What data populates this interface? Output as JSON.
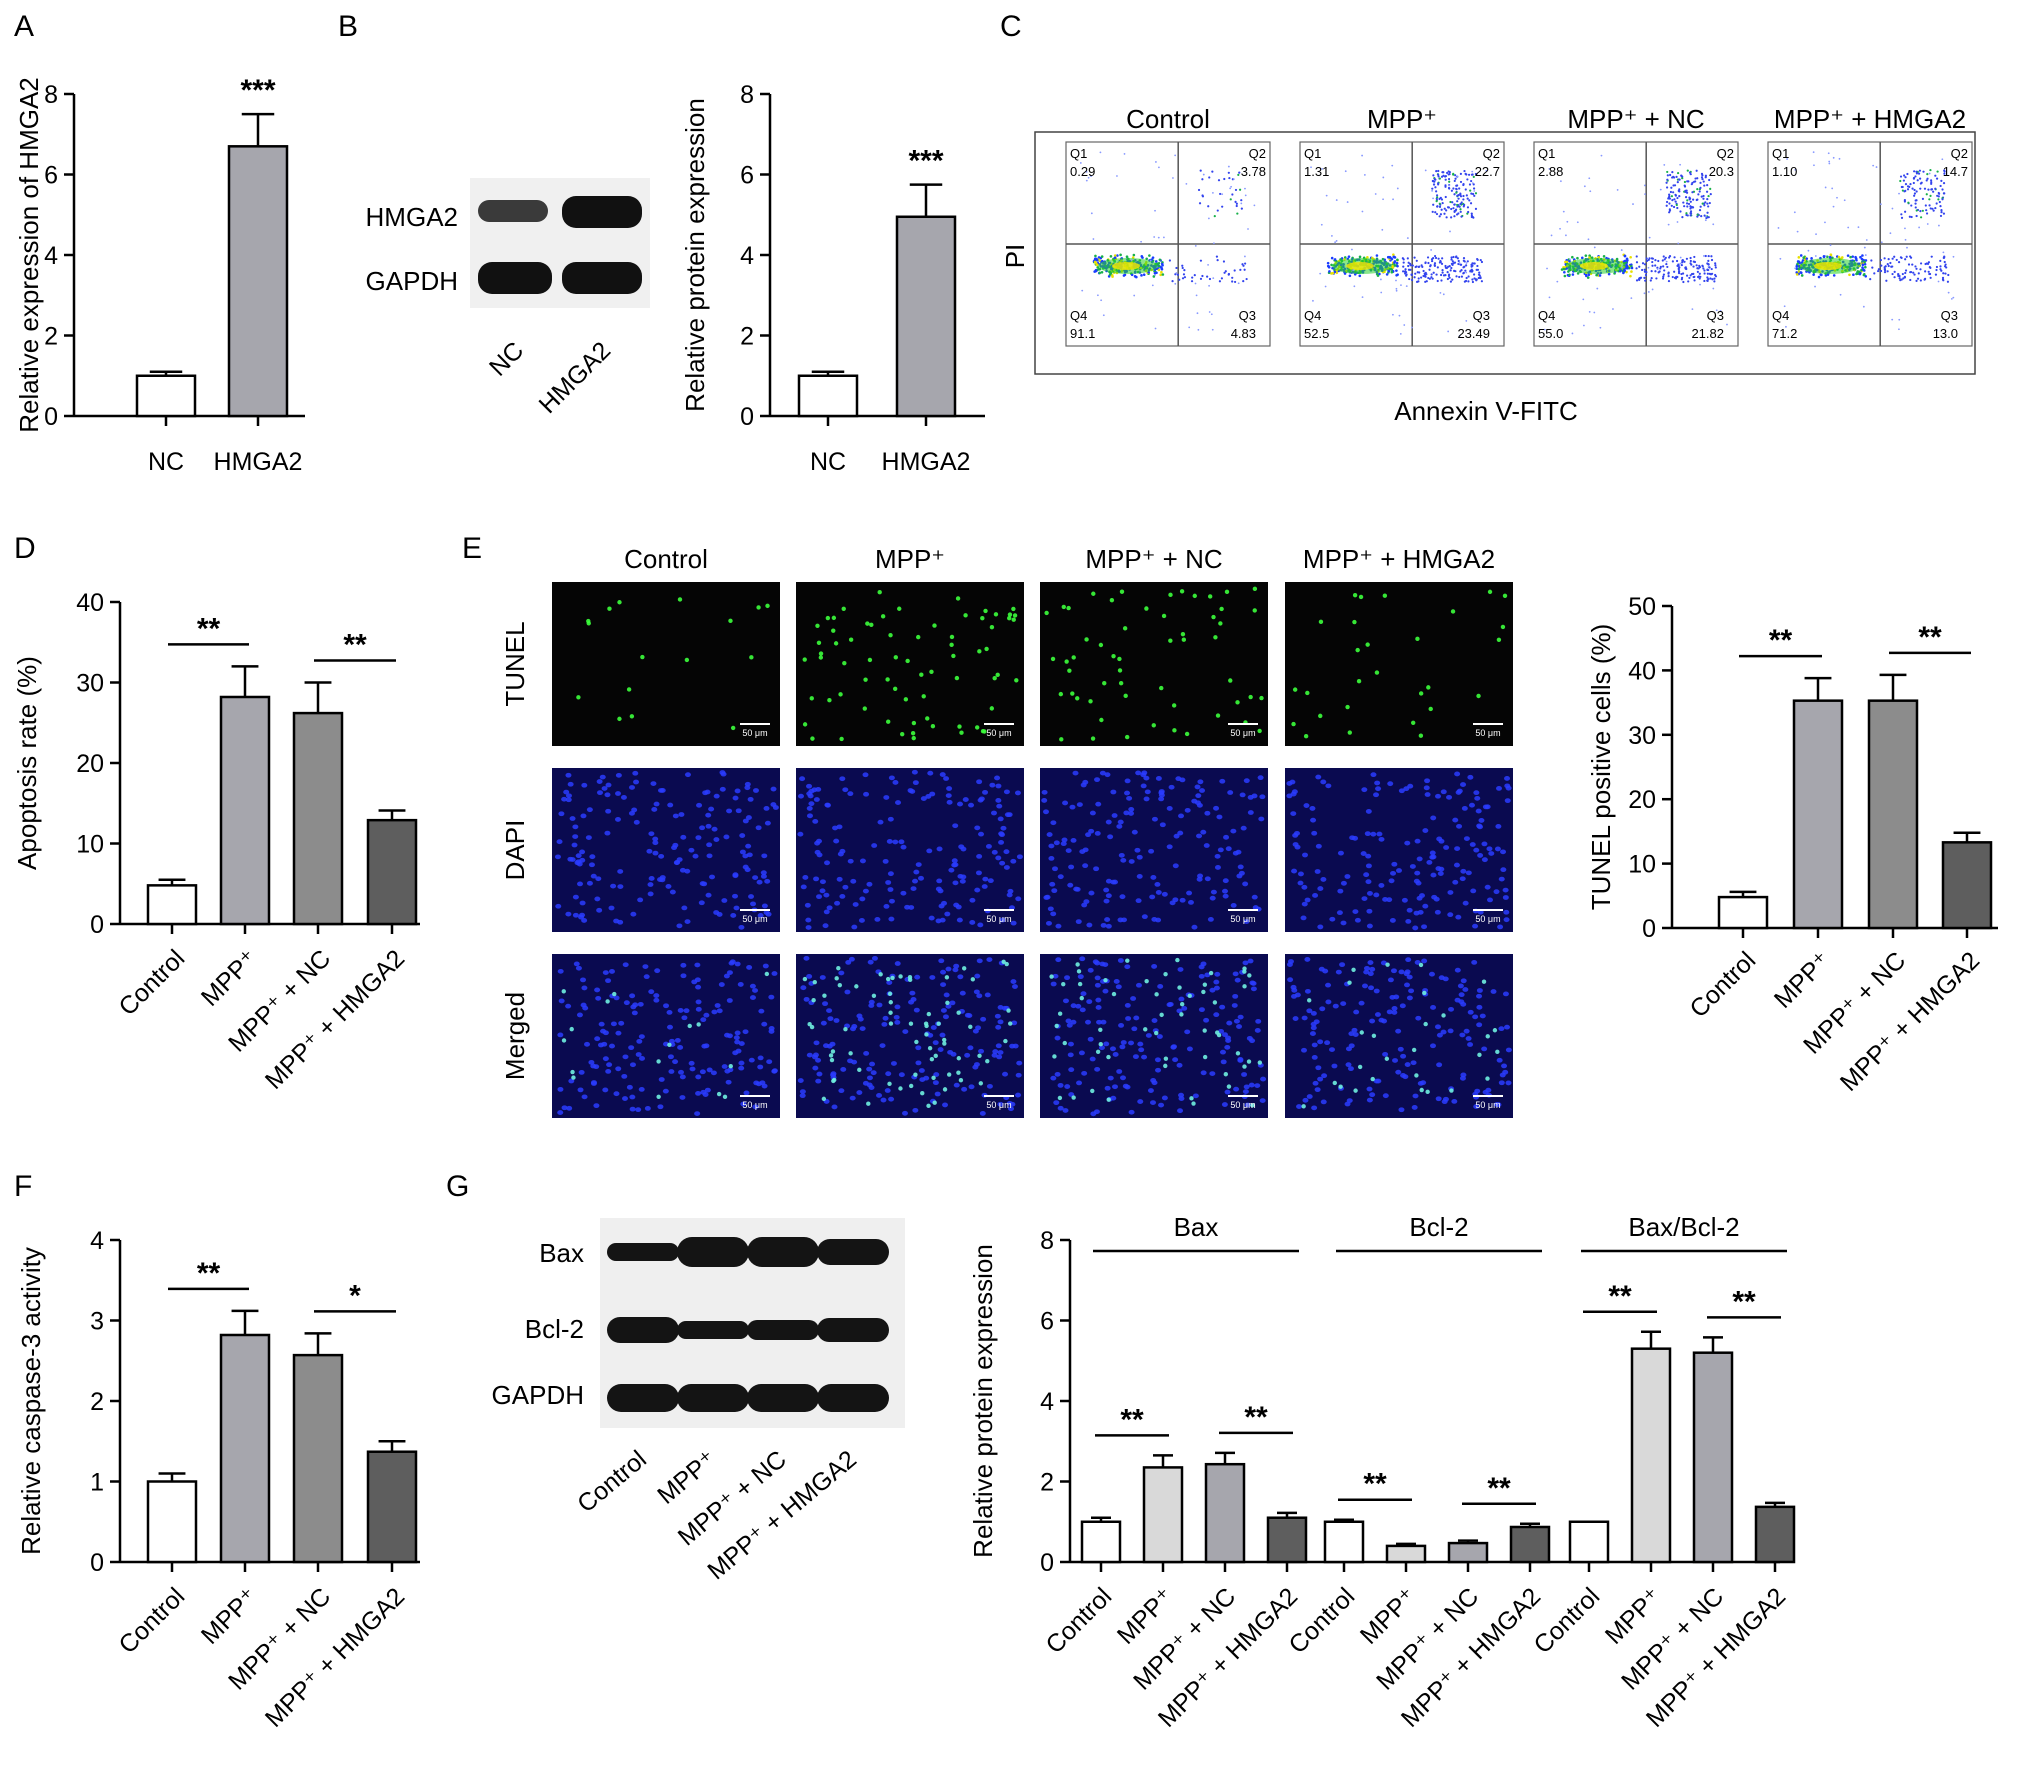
{
  "panels": {
    "A": "A",
    "B": "B",
    "C": "C",
    "D": "D",
    "E": "E",
    "F": "F",
    "G": "G"
  },
  "colors": {
    "white": "#ffffff",
    "light_gray": "#d9d9d9",
    "mid_gray": "#a6a6ad",
    "gray": "#8c8c8c",
    "dark_gray": "#5e5e5e",
    "blot_bg": "#f2f2f2",
    "blot_band": "#1a1a1a",
    "tunel_bg": "#050505",
    "dapi_bg": "#0a0a50",
    "dapi_dot": "#2a3cff",
    "tunel_dot": "#3cff3c"
  },
  "blot_B": {
    "rows": [
      "HMGA2",
      "GAPDH"
    ],
    "lanes": [
      "NC",
      "HMGA2"
    ]
  },
  "flow_C": {
    "titles": [
      "Control",
      "MPP⁺",
      "MPP⁺ + NC",
      "MPP⁺ + HMGA2"
    ],
    "y_label": "PI",
    "x_label": "Annexin  V-FITC",
    "quadrants": [
      {
        "q1": "0.29",
        "q2": "3.78",
        "q3": "4.83",
        "q4": "91.1"
      },
      {
        "q1": "1.31",
        "q2": "22.7",
        "q3": "23.49",
        "q4": "52.5"
      },
      {
        "q1": "2.88",
        "q2": "20.3",
        "q3": "21.82",
        "q4": "55.0"
      },
      {
        "q1": "1.10",
        "q2": "14.7",
        "q3": "13.0",
        "q4": "71.2"
      }
    ],
    "q_names": [
      "Q1",
      "Q2",
      "Q3",
      "Q4"
    ]
  },
  "micro_E": {
    "col_titles": [
      "Control",
      "MPP⁺",
      "MPP⁺ + NC",
      "MPP⁺ + HMGA2"
    ],
    "row_labels": [
      "TUNEL",
      "DAPI",
      "Merged"
    ],
    "scale": "50 μm"
  },
  "blot_G": {
    "rows": [
      "Bax",
      "Bcl-2",
      "GAPDH"
    ],
    "lanes": [
      "Control",
      "MPP⁺",
      "MPP⁺ + NC",
      "MPP⁺ + HMGA2"
    ]
  },
  "chart_data": [
    {
      "id": "A",
      "type": "bar",
      "categories": [
        "NC",
        "HMGA2"
      ],
      "values": [
        1.0,
        6.7
      ],
      "errors": [
        0.1,
        0.8
      ],
      "ylabel": "Relative expression of HMGA2",
      "ylim": [
        0,
        8
      ],
      "yticks": [
        0,
        2,
        4,
        6,
        8
      ],
      "significance": [
        {
          "label": "***",
          "over": 1
        }
      ]
    },
    {
      "id": "B",
      "type": "bar",
      "categories": [
        "NC",
        "HMGA2"
      ],
      "values": [
        1.0,
        4.95
      ],
      "errors": [
        0.1,
        0.8
      ],
      "ylabel": "Relative protein expression",
      "ylim": [
        0,
        8
      ],
      "yticks": [
        0,
        2,
        4,
        6,
        8
      ],
      "significance": [
        {
          "label": "***",
          "over": 1
        }
      ]
    },
    {
      "id": "D",
      "type": "bar",
      "categories": [
        "Control",
        "MPP⁺",
        "MPP⁺ + NC",
        "MPP⁺ + HMGA2"
      ],
      "values": [
        4.8,
        28.2,
        26.2,
        12.9
      ],
      "errors": [
        0.7,
        3.8,
        3.8,
        1.2
      ],
      "ylabel": "Apoptosis rate (%)",
      "ylim": [
        0,
        40
      ],
      "yticks": [
        0,
        10,
        20,
        30,
        40
      ],
      "significance": [
        {
          "label": "**",
          "from": 0,
          "to": 1
        },
        {
          "label": "**",
          "from": 2,
          "to": 3
        }
      ]
    },
    {
      "id": "E",
      "type": "bar",
      "categories": [
        "Control",
        "MPP⁺",
        "MPP⁺ + NC",
        "MPP⁺ + HMGA2"
      ],
      "values": [
        4.8,
        35.3,
        35.3,
        13.3
      ],
      "errors": [
        0.8,
        3.5,
        4.0,
        1.5
      ],
      "ylabel": "TUNEL positive cells (%)",
      "ylim": [
        0,
        50
      ],
      "yticks": [
        0,
        10,
        20,
        30,
        40,
        50
      ],
      "significance": [
        {
          "label": "**",
          "from": 0,
          "to": 1
        },
        {
          "label": "**",
          "from": 2,
          "to": 3
        }
      ]
    },
    {
      "id": "F",
      "type": "bar",
      "categories": [
        "Control",
        "MPP⁺",
        "MPP⁺ + NC",
        "MPP⁺ + HMGA2"
      ],
      "values": [
        1.0,
        2.82,
        2.57,
        1.37
      ],
      "errors": [
        0.1,
        0.3,
        0.27,
        0.13
      ],
      "ylabel": "Relative caspase-3 activity",
      "ylim": [
        0,
        4
      ],
      "yticks": [
        0,
        1,
        2,
        3,
        4
      ],
      "significance": [
        {
          "label": "**",
          "from": 0,
          "to": 1
        },
        {
          "label": "*",
          "from": 2,
          "to": 3
        }
      ]
    },
    {
      "id": "G",
      "type": "bar",
      "groups": [
        "Bax",
        "Bcl-2",
        "Bax/Bcl-2"
      ],
      "categories": [
        "Control",
        "MPP⁺",
        "MPP⁺ + NC",
        "MPP⁺ + HMGA2"
      ],
      "values": [
        [
          1.0,
          2.35,
          2.43,
          1.1
        ],
        [
          1.0,
          0.4,
          0.47,
          0.87
        ],
        [
          1.0,
          5.3,
          5.2,
          1.37
        ]
      ],
      "errors": [
        [
          0.1,
          0.3,
          0.28,
          0.12
        ],
        [
          0.05,
          0.05,
          0.06,
          0.08
        ],
        [
          0.0,
          0.42,
          0.38,
          0.1
        ]
      ],
      "ylabel": "Relative protein expression",
      "ylim": [
        0,
        8
      ],
      "yticks": [
        0,
        2,
        4,
        6,
        8
      ],
      "significance": [
        {
          "label": "**",
          "group": 0,
          "from": 0,
          "to": 1
        },
        {
          "label": "**",
          "group": 0,
          "from": 2,
          "to": 3
        },
        {
          "label": "**",
          "group": 1,
          "from": 0,
          "to": 1
        },
        {
          "label": "**",
          "group": 1,
          "from": 2,
          "to": 3
        },
        {
          "label": "**",
          "group": 2,
          "from": 0,
          "to": 1
        },
        {
          "label": "**",
          "group": 2,
          "from": 2,
          "to": 3
        }
      ]
    }
  ]
}
